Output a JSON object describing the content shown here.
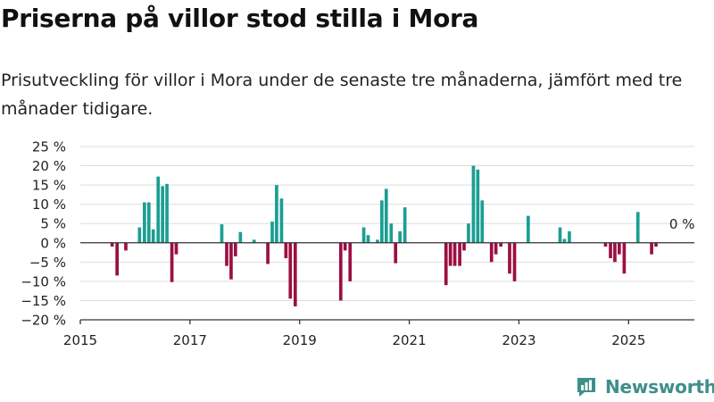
{
  "header": {
    "title": "Priserna på villor stod stilla i Mora",
    "subtitle": "Prisutveckling för villor i Mora under de senaste tre månaderna, jämfört med tre månader tidigare."
  },
  "brand": {
    "name": "Newsworthy",
    "icon": "newsworthy-logo-icon",
    "color": "#3e8f8a"
  },
  "chart_data": {
    "type": "bar",
    "xlim": [
      2015.0,
      2026.2
    ],
    "ylim": [
      -20,
      25
    ],
    "yticks": [
      -20,
      -15,
      -10,
      -5,
      0,
      5,
      10,
      15,
      20,
      25
    ],
    "ytick_labels": [
      "−20 %",
      "−15 %",
      "−10 %",
      "−5 %",
      "0 %",
      "5 %",
      "10 %",
      "15 %",
      "20 %",
      "25 %"
    ],
    "xticks": [
      2015,
      2017,
      2019,
      2021,
      2023,
      2025
    ],
    "xtick_labels": [
      "2015",
      "2017",
      "2019",
      "2021",
      "2023",
      "2025"
    ],
    "grid": true,
    "colors": {
      "positive": "#1b9e93",
      "negative": "#9c0f42"
    },
    "annotation": {
      "text": "0 %",
      "x": 2025.58,
      "y": 0
    },
    "points": [
      {
        "x": 2015.58,
        "y": -1
      },
      {
        "x": 2015.67,
        "y": -8.5
      },
      {
        "x": 2015.83,
        "y": -2
      },
      {
        "x": 2016.08,
        "y": 4
      },
      {
        "x": 2016.17,
        "y": 10.5
      },
      {
        "x": 2016.25,
        "y": 10.5
      },
      {
        "x": 2016.33,
        "y": 3.5
      },
      {
        "x": 2016.42,
        "y": 17.2
      },
      {
        "x": 2016.5,
        "y": 14.7
      },
      {
        "x": 2016.58,
        "y": 15.3
      },
      {
        "x": 2016.67,
        "y": -10.2
      },
      {
        "x": 2016.75,
        "y": -3
      },
      {
        "x": 2017.58,
        "y": 4.8
      },
      {
        "x": 2017.67,
        "y": -6
      },
      {
        "x": 2017.75,
        "y": -9.5
      },
      {
        "x": 2017.83,
        "y": -3.5
      },
      {
        "x": 2017.92,
        "y": 2.8
      },
      {
        "x": 2018.17,
        "y": 0.8
      },
      {
        "x": 2018.42,
        "y": -5.5
      },
      {
        "x": 2018.5,
        "y": 5.5
      },
      {
        "x": 2018.58,
        "y": 15
      },
      {
        "x": 2018.67,
        "y": 11.5
      },
      {
        "x": 2018.75,
        "y": -4
      },
      {
        "x": 2018.83,
        "y": -14.5
      },
      {
        "x": 2018.92,
        "y": -16.5
      },
      {
        "x": 2019.75,
        "y": -15
      },
      {
        "x": 2019.83,
        "y": -2
      },
      {
        "x": 2019.92,
        "y": -10
      },
      {
        "x": 2020.17,
        "y": 4
      },
      {
        "x": 2020.25,
        "y": 2
      },
      {
        "x": 2020.42,
        "y": 0.8
      },
      {
        "x": 2020.5,
        "y": 11
      },
      {
        "x": 2020.58,
        "y": 14
      },
      {
        "x": 2020.67,
        "y": 5
      },
      {
        "x": 2020.75,
        "y": -5.3
      },
      {
        "x": 2020.83,
        "y": 3
      },
      {
        "x": 2020.92,
        "y": 9.2
      },
      {
        "x": 2021.67,
        "y": -11
      },
      {
        "x": 2021.75,
        "y": -6
      },
      {
        "x": 2021.83,
        "y": -6
      },
      {
        "x": 2021.92,
        "y": -6
      },
      {
        "x": 2022.0,
        "y": -2
      },
      {
        "x": 2022.08,
        "y": 5
      },
      {
        "x": 2022.17,
        "y": 20
      },
      {
        "x": 2022.25,
        "y": 19
      },
      {
        "x": 2022.33,
        "y": 11
      },
      {
        "x": 2022.5,
        "y": -5
      },
      {
        "x": 2022.58,
        "y": -3
      },
      {
        "x": 2022.67,
        "y": -1
      },
      {
        "x": 2022.83,
        "y": -8
      },
      {
        "x": 2022.92,
        "y": -10
      },
      {
        "x": 2023.17,
        "y": 7
      },
      {
        "x": 2023.75,
        "y": 4
      },
      {
        "x": 2023.83,
        "y": 1
      },
      {
        "x": 2023.92,
        "y": 3
      },
      {
        "x": 2024.58,
        "y": -1
      },
      {
        "x": 2024.67,
        "y": -4
      },
      {
        "x": 2024.75,
        "y": -5
      },
      {
        "x": 2024.83,
        "y": -3
      },
      {
        "x": 2024.92,
        "y": -8
      },
      {
        "x": 2025.17,
        "y": 8
      },
      {
        "x": 2025.42,
        "y": -3
      },
      {
        "x": 2025.5,
        "y": -1
      }
    ]
  }
}
